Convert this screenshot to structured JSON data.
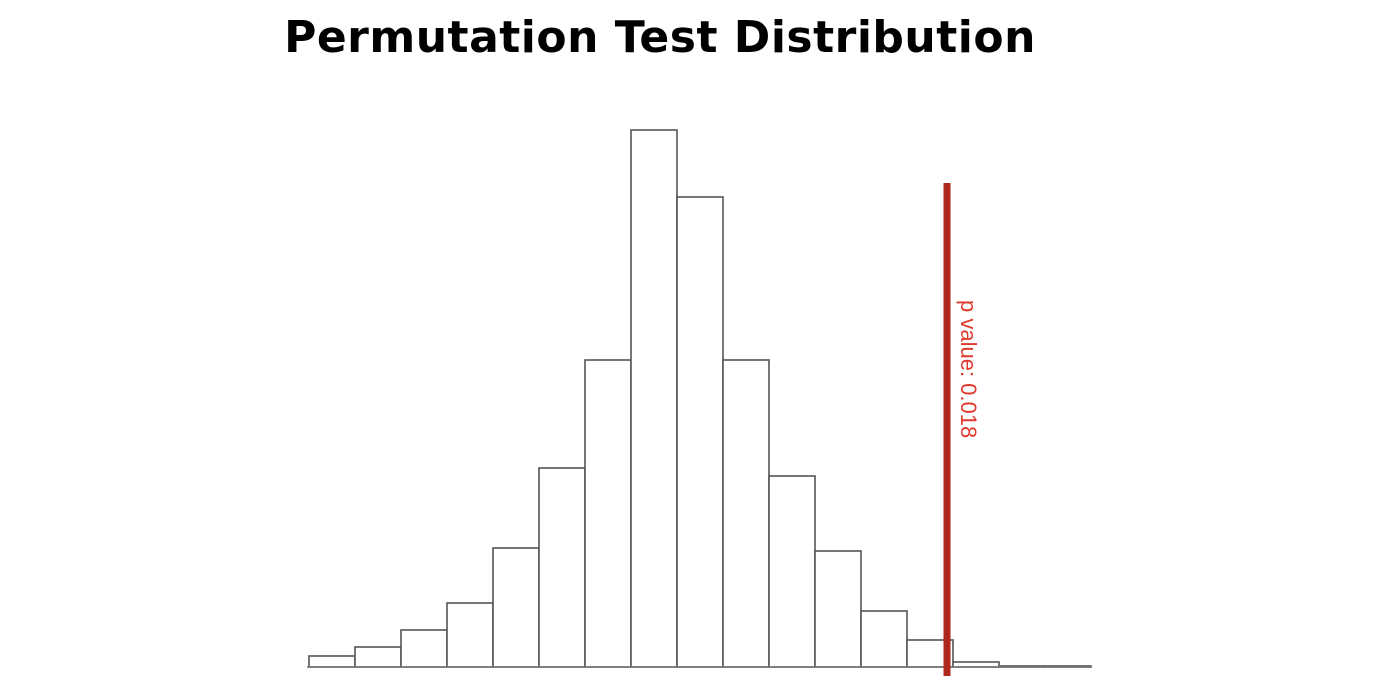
{
  "chart_data": {
    "type": "bar",
    "title": "Permutation Test Distribution",
    "xlabel": "",
    "ylabel": "",
    "values": [
      11,
      20,
      37,
      64,
      119,
      199,
      307,
      537,
      470,
      307,
      191,
      116,
      56,
      27,
      5,
      1,
      1
    ],
    "grid": false,
    "bar_fill": "#ffffff",
    "bar_stroke": "#555555",
    "threshold": {
      "bin_position": 13.87,
      "label": "p value: 0.018",
      "line_color": "#b0271e",
      "label_color": "#e03a2f"
    }
  }
}
